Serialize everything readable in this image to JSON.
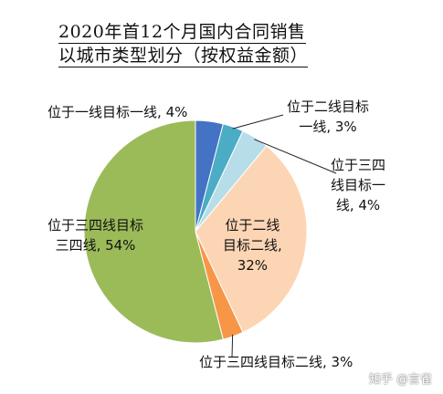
{
  "chart_data": {
    "type": "pie",
    "title": "2020年首12个月国内合同销售",
    "subtitle": "以城市类型划分（按权益金额）",
    "unit": "%",
    "slices": [
      {
        "label_line1": "位于一线目标一线,",
        "label_line2": "4%",
        "label": "位于一线目标一线",
        "value": 4,
        "value_text": "4%",
        "color": "#4472c4"
      },
      {
        "label_line1": "位于二线目标",
        "label_line2": "一线, 3%",
        "label": "位于二线目标一线",
        "value": 3,
        "value_text": "3%",
        "color": "#4bacc6"
      },
      {
        "label_line1": "位于三四",
        "label_line2": "线目标一",
        "label_line3": "线, 4%",
        "label": "位于三四线目标一线",
        "value": 4,
        "value_text": "4%",
        "color": "#b7dee8"
      },
      {
        "label_line1": "位于二线",
        "label_line2": "目标二线,",
        "label_line3": "32%",
        "label": "位于二线目标二线",
        "value": 32,
        "value_text": "32%",
        "color": "#fcd5b4"
      },
      {
        "label_line1": "位于三四线目标二线, 3%",
        "label": "位于三四线目标二线",
        "value": 3,
        "value_text": "3%",
        "color": "#f79646"
      },
      {
        "label_line1": "位于三四线目标",
        "label_line2": "三四线, 54%",
        "label": "位于三四线目标三四线",
        "value": 54,
        "value_text": "54%",
        "color": "#9bbb59"
      }
    ]
  },
  "watermark": "知乎 @言雀"
}
